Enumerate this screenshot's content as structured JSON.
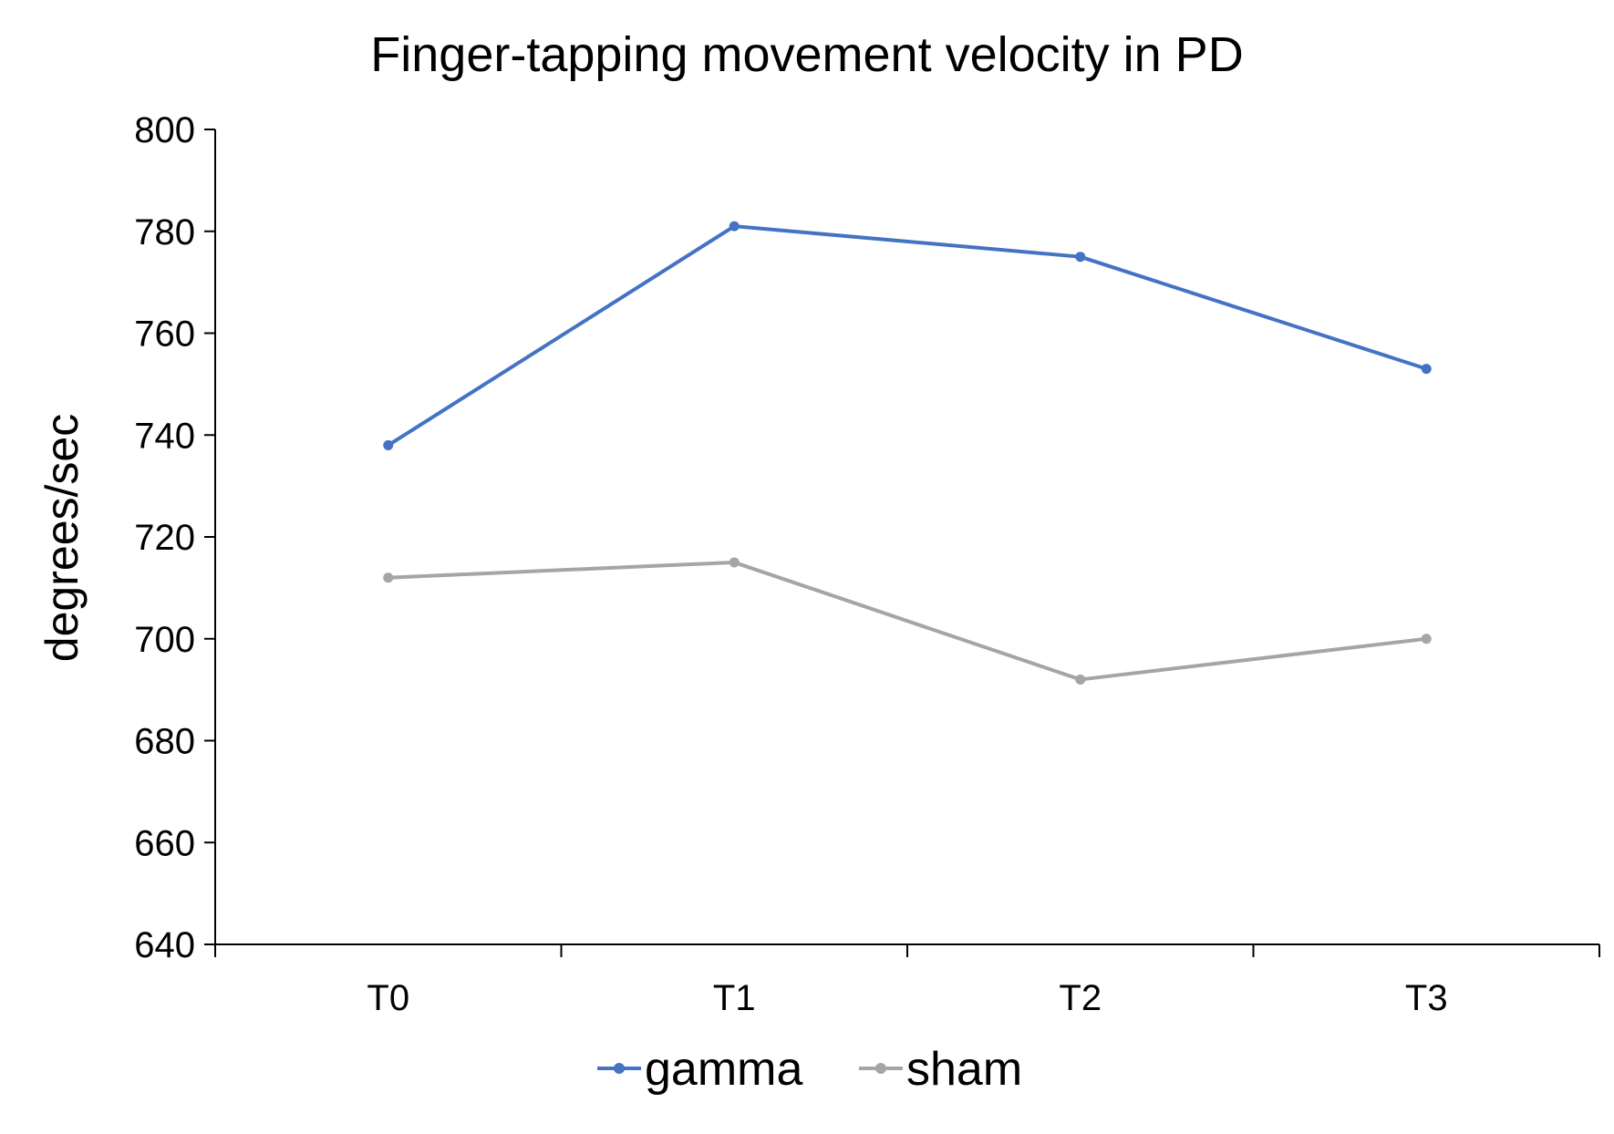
{
  "chart_data": {
    "type": "line",
    "title": "Finger-tapping movement velocity in PD",
    "xlabel": "",
    "ylabel": "degrees/sec",
    "categories": [
      "T0",
      "T1",
      "T2",
      "T3"
    ],
    "ylim": [
      640,
      800
    ],
    "yticks": [
      640,
      660,
      680,
      700,
      720,
      740,
      760,
      780,
      800
    ],
    "grid": false,
    "legend": "bottom",
    "series": [
      {
        "name": "gamma",
        "color": "#4472C4",
        "values": [
          738,
          781,
          775,
          753
        ]
      },
      {
        "name": "sham",
        "color": "#A5A5A5",
        "values": [
          712,
          715,
          692,
          700
        ]
      }
    ]
  }
}
